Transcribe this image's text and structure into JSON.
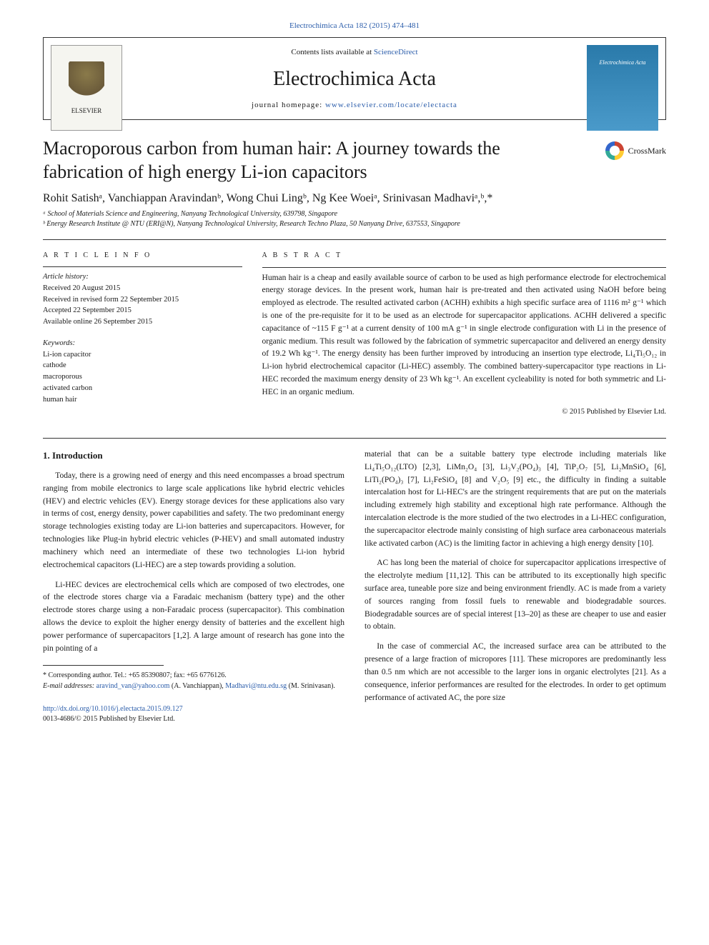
{
  "top_link": {
    "prefix": "",
    "journal_ref": "Electrochimica Acta 182 (2015) 474–481"
  },
  "header": {
    "contents_prefix": "Contents lists available at ",
    "contents_link": "ScienceDirect",
    "journal_title": "Electrochimica Acta",
    "homepage_label": "journal homepage: ",
    "homepage_url": "www.elsevier.com/locate/electacta",
    "elsevier_name": "ELSEVIER",
    "cover_text": "Electrochimica Acta"
  },
  "article": {
    "title": "Macroporous carbon from human hair: A journey towards the fabrication of high energy Li-ion capacitors",
    "crossmark_label": "CrossMark",
    "authors_html": "Rohit Satishᵃ, Vanchiappan Aravindanᵇ, Wong Chui Lingᵇ, Ng Kee Woeiᵃ, Srinivasan Madhaviᵃ,ᵇ,*",
    "affiliations": [
      "ᵃ School of Materials Science and Engineering, Nanyang Technological University, 639798, Singapore",
      "ᵇ Energy Research Institute @ NTU (ERI@N), Nanyang Technological University, Research Techno Plaza, 50 Nanyang Drive, 637553, Singapore"
    ]
  },
  "info": {
    "label": "A R T I C L E  I N F O",
    "history_label": "Article history:",
    "history": [
      "Received 20 August 2015",
      "Received in revised form 22 September 2015",
      "Accepted 22 September 2015",
      "Available online 26 September 2015"
    ],
    "keywords_label": "Keywords:",
    "keywords": [
      "Li-ion capacitor",
      "cathode",
      "macroporous",
      "activated carbon",
      "human hair"
    ]
  },
  "abstract": {
    "label": "A B S T R A C T",
    "text": "Human hair is a cheap and easily available source of carbon to be used as high performance electrode for electrochemical energy storage devices. In the present work, human hair is pre-treated and then activated using NaOH before being employed as electrode. The resulted activated carbon (ACHH) exhibits a high specific surface area of 1116 m² g⁻¹ which is one of the pre-requisite for it to be used as an electrode for supercapacitor applications. ACHH delivered a specific capacitance of ~115 F g⁻¹ at a current density of 100 mA g⁻¹ in single electrode configuration with Li in the presence of organic medium. This result was followed by the fabrication of symmetric supercapacitor and delivered an energy density of 19.2 Wh kg⁻¹. The energy density has been further improved by introducing an insertion type electrode, Li₄Ti₅O₁₂ in Li-ion hybrid electrochemical capacitor (Li-HEC) assembly. The combined battery-supercapacitor type reactions in Li-HEC recorded the maximum energy density of 23 Wh kg⁻¹. An excellent cycleability is noted for both symmetric and Li-HEC in an organic medium.",
    "copyright": "© 2015 Published by Elsevier Ltd."
  },
  "body": {
    "section_title": "1. Introduction",
    "left_paragraphs": [
      "Today, there is a growing need of energy and this need encompasses a broad spectrum ranging from mobile electronics to large scale applications like hybrid electric vehicles (HEV) and electric vehicles (EV). Energy storage devices for these applications also vary in terms of cost, energy density, power capabilities and safety. The two predominant energy storage technologies existing today are Li-ion batteries and supercapacitors. However, for technologies like Plug-in hybrid electric vehicles (P-HEV) and small automated industry machinery which need an intermediate of these two technologies Li-ion hybrid electrochemical capacitors (Li-HEC) are a step towards providing a solution.",
      "Li-HEC devices are electrochemical cells which are composed of two electrodes, one of the electrode stores charge via a Faradaic mechanism (battery type) and the other electrode stores charge using a non-Faradaic process (supercapacitor). This combination allows the device to exploit the higher energy density of batteries and the excellent high power performance of supercapacitors [1,2]. A large amount of research has gone into the pin pointing of a"
    ],
    "right_paragraphs": [
      "material that can be a suitable battery type electrode including materials like Li₄Ti₅O₁₂(LTO) [2,3], LiMn₂O₄ [3], Li₃V₂(PO₄)₃ [4], TiP₂O₇ [5], Li₂MnSiO₄ [6], LiTi₂(PO₄)₃ [7], Li₂FeSiO₄ [8] and V₂O₅ [9] etc., the difficulty in finding a suitable intercalation host for Li-HEC's are the stringent requirements that are put on the materials including extremely high stability and exceptional high rate performance. Although the intercalation electrode is the more studied of the two electrodes in a Li-HEC configuration, the supercapacitor electrode mainly consisting of high surface area carbonaceous materials like activated carbon (AC) is the limiting factor in achieving a high energy density [10].",
      "AC has long been the material of choice for supercapacitor applications irrespective of the electrolyte medium [11,12]. This can be attributed to its exceptionally high specific surface area, tuneable pore size and being environment friendly. AC is made from a variety of sources ranging from fossil fuels to renewable and biodegradable sources. Biodegradable sources are of special interest [13–20] as these are cheaper to use and easier to obtain.",
      "In the case of commercial AC, the increased surface area can be attributed to the presence of a large fraction of micropores [11]. These micropores are predominantly less than 0.5 nm which are not accessible to the larger ions in organic electrolytes [21]. As a consequence, inferior performances are resulted for the electrodes. In order to get optimum performance of activated AC, the pore size"
    ],
    "ref_color": "#2a5caa"
  },
  "correspondence": {
    "line1": "* Corresponding author. Tel.: +65 85390807; fax: +65 6776126.",
    "emails_label": "E-mail addresses: ",
    "email1": "aravind_van@yahoo.com",
    "email1_who": " (A. Vanchiappan), ",
    "email2": "Madhavi@ntu.edu.sg",
    "email2_who": " (M. Srinivasan)."
  },
  "doi": {
    "url": "http://dx.doi.org/10.1016/j.electacta.2015.09.127",
    "issn_line": "0013-4686/© 2015 Published by Elsevier Ltd."
  },
  "colors": {
    "link": "#2a5caa",
    "text": "#1a1a1a",
    "rule": "#333333",
    "cover_bg_top": "#2a7aaa",
    "cover_bg_bottom": "#4a9aca"
  },
  "typography": {
    "body_size_pt": 9,
    "title_size_pt": 20,
    "journal_title_size_pt": 22,
    "authors_size_pt": 12,
    "small_size_pt": 8
  }
}
